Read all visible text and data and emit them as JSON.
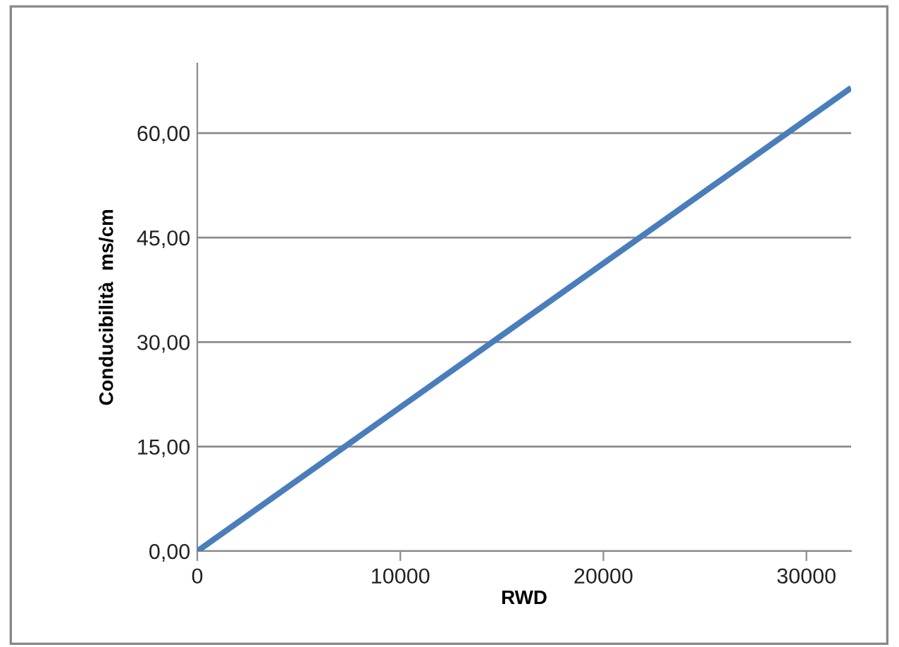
{
  "chart_data": {
    "type": "line",
    "xlabel": "RWD",
    "ylabel": "Conducibilità  ms/cm",
    "x": [
      0,
      32200
    ],
    "series": [
      {
        "color": "#4a7ebb",
        "values": [
          0,
          66.5
        ]
      }
    ],
    "xlim": [
      0,
      32200
    ],
    "ylim": [
      0,
      70
    ],
    "xticks": [
      0,
      10000,
      20000,
      30000
    ],
    "yticks": [
      {
        "value": 0,
        "label": "0,00"
      },
      {
        "value": 15,
        "label": "15,00"
      },
      {
        "value": 30,
        "label": "30,00"
      },
      {
        "value": 45,
        "label": "45,00"
      },
      {
        "value": 60,
        "label": "60,00"
      }
    ],
    "grid": "y",
    "marker": "none",
    "line_style": "solid"
  }
}
